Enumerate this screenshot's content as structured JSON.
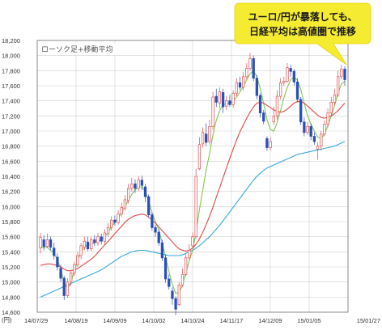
{
  "chart_data": {
    "type": "candlestick",
    "title": "ローソク足+移動平均",
    "ylabel": "(円)",
    "ylim": [
      14600,
      18200
    ],
    "y_ticks": [
      "18,200",
      "18,000",
      "17,800",
      "17,600",
      "17,400",
      "17,200",
      "17,000",
      "16,800",
      "16,600",
      "16,400",
      "16,200",
      "16,000",
      "15,800",
      "15,600",
      "15,400",
      "15,200",
      "15,000",
      "14,800",
      "14,600"
    ],
    "x_ticks": [
      "14/07/29",
      "14/08/19",
      "14/09/09",
      "14/10/02",
      "14/10/24",
      "14/11/17",
      "14/12/09",
      "15/01/05",
      "15/01/27"
    ],
    "grid": true,
    "colors": {
      "up": "#e05050",
      "down": "#2a4fb8",
      "ma_short": "#7fc850",
      "ma_mid": "#e04848",
      "ma_long": "#37a7dd",
      "bubble": "#f5ec31",
      "frame": "#888888",
      "grid": "#d0d0d0"
    },
    "candles": [
      {
        "o": 15450,
        "c": 15590,
        "h": 15650,
        "l": 15380
      },
      {
        "o": 15560,
        "c": 15470,
        "h": 15620,
        "l": 15420
      },
      {
        "o": 15470,
        "c": 15560,
        "h": 15640,
        "l": 15450
      },
      {
        "o": 15560,
        "c": 15460,
        "h": 15600,
        "l": 15420
      },
      {
        "o": 15450,
        "c": 15350,
        "h": 15520,
        "l": 15300
      },
      {
        "o": 15330,
        "c": 15200,
        "h": 15380,
        "l": 15150
      },
      {
        "o": 15180,
        "c": 15050,
        "h": 15230,
        "l": 15000
      },
      {
        "o": 15050,
        "c": 14820,
        "h": 15080,
        "l": 14760
      },
      {
        "o": 14820,
        "c": 15000,
        "h": 15050,
        "l": 14790
      },
      {
        "o": 15000,
        "c": 15120,
        "h": 15150,
        "l": 14950
      },
      {
        "o": 15120,
        "c": 15230,
        "h": 15270,
        "l": 15080
      },
      {
        "o": 15230,
        "c": 15350,
        "h": 15400,
        "l": 15200
      },
      {
        "o": 15350,
        "c": 15480,
        "h": 15520,
        "l": 15300
      },
      {
        "o": 15460,
        "c": 15540,
        "h": 15600,
        "l": 15420
      },
      {
        "o": 15530,
        "c": 15440,
        "h": 15600,
        "l": 15410
      },
      {
        "o": 15440,
        "c": 15560,
        "h": 15600,
        "l": 15410
      },
      {
        "o": 15560,
        "c": 15520,
        "h": 15620,
        "l": 15480
      },
      {
        "o": 15520,
        "c": 15600,
        "h": 15650,
        "l": 15480
      },
      {
        "o": 15600,
        "c": 15540,
        "h": 15640,
        "l": 15500
      },
      {
        "o": 15540,
        "c": 15650,
        "h": 15700,
        "l": 15500
      },
      {
        "o": 15640,
        "c": 15720,
        "h": 15780,
        "l": 15600
      },
      {
        "o": 15720,
        "c": 15820,
        "h": 15870,
        "l": 15680
      },
      {
        "o": 15820,
        "c": 15790,
        "h": 15880,
        "l": 15750
      },
      {
        "o": 15790,
        "c": 15900,
        "h": 15950,
        "l": 15760
      },
      {
        "o": 15900,
        "c": 15990,
        "h": 16050,
        "l": 15860
      },
      {
        "o": 15980,
        "c": 16090,
        "h": 16150,
        "l": 15940
      },
      {
        "o": 16080,
        "c": 16240,
        "h": 16300,
        "l": 16040
      },
      {
        "o": 16240,
        "c": 16300,
        "h": 16380,
        "l": 16200
      },
      {
        "o": 16300,
        "c": 16240,
        "h": 16360,
        "l": 16180
      },
      {
        "o": 16240,
        "c": 16350,
        "h": 16400,
        "l": 16200
      },
      {
        "o": 16350,
        "c": 16280,
        "h": 16410,
        "l": 16220
      },
      {
        "o": 16260,
        "c": 16130,
        "h": 16300,
        "l": 16060
      },
      {
        "o": 16130,
        "c": 15890,
        "h": 16160,
        "l": 15860
      },
      {
        "o": 15890,
        "c": 15720,
        "h": 15920,
        "l": 15680
      },
      {
        "o": 15720,
        "c": 15660,
        "h": 15760,
        "l": 15600
      },
      {
        "o": 15660,
        "c": 15520,
        "h": 15700,
        "l": 15480
      },
      {
        "o": 15520,
        "c": 15320,
        "h": 15560,
        "l": 15280
      },
      {
        "o": 15320,
        "c": 15040,
        "h": 15360,
        "l": 14990
      },
      {
        "o": 15040,
        "c": 14940,
        "h": 15100,
        "l": 14900
      },
      {
        "o": 14880,
        "c": 14780,
        "h": 14930,
        "l": 14700
      },
      {
        "o": 14780,
        "c": 14640,
        "h": 14810,
        "l": 14560
      },
      {
        "o": 14700,
        "c": 14960,
        "h": 15000,
        "l": 14680
      },
      {
        "o": 14960,
        "c": 15100,
        "h": 15180,
        "l": 14930
      },
      {
        "o": 15100,
        "c": 15320,
        "h": 15380,
        "l": 15080
      },
      {
        "o": 15320,
        "c": 15420,
        "h": 15500,
        "l": 15300
      },
      {
        "o": 15480,
        "c": 15600,
        "h": 15660,
        "l": 15450
      },
      {
        "o": 15600,
        "c": 16400,
        "h": 16500,
        "l": 15580
      },
      {
        "o": 16500,
        "c": 16820,
        "h": 16920,
        "l": 16480
      },
      {
        "o": 16830,
        "c": 16980,
        "h": 17050,
        "l": 16780
      },
      {
        "o": 16960,
        "c": 16850,
        "h": 17100,
        "l": 16800
      },
      {
        "o": 16860,
        "c": 17060,
        "h": 17150,
        "l": 16820
      },
      {
        "o": 17060,
        "c": 17450,
        "h": 17520,
        "l": 17020
      },
      {
        "o": 17460,
        "c": 17380,
        "h": 17560,
        "l": 17320
      },
      {
        "o": 17370,
        "c": 17520,
        "h": 17580,
        "l": 17300
      },
      {
        "o": 17510,
        "c": 17320,
        "h": 17560,
        "l": 17240
      },
      {
        "o": 17330,
        "c": 17400,
        "h": 17460,
        "l": 17280
      },
      {
        "o": 17400,
        "c": 17350,
        "h": 17480,
        "l": 17320
      },
      {
        "o": 17350,
        "c": 17500,
        "h": 17540,
        "l": 17310
      },
      {
        "o": 17500,
        "c": 17640,
        "h": 17700,
        "l": 17460
      },
      {
        "o": 17640,
        "c": 17580,
        "h": 17720,
        "l": 17540
      },
      {
        "o": 17580,
        "c": 17720,
        "h": 17780,
        "l": 17540
      },
      {
        "o": 17720,
        "c": 17830,
        "h": 17900,
        "l": 17680
      },
      {
        "o": 17830,
        "c": 17960,
        "h": 18030,
        "l": 17800
      },
      {
        "o": 17960,
        "c": 17700,
        "h": 18000,
        "l": 17660
      },
      {
        "o": 17700,
        "c": 17470,
        "h": 17740,
        "l": 17420
      },
      {
        "o": 17470,
        "c": 17240,
        "h": 17500,
        "l": 17180
      },
      {
        "o": 17240,
        "c": 17130,
        "h": 17280,
        "l": 17090
      },
      {
        "o": 16900,
        "c": 16780,
        "h": 16930,
        "l": 16740
      },
      {
        "o": 16780,
        "c": 16860,
        "h": 16920,
        "l": 16740
      },
      {
        "o": 17120,
        "c": 17200,
        "h": 17320,
        "l": 17080
      },
      {
        "o": 17200,
        "c": 17460,
        "h": 17540,
        "l": 17150
      },
      {
        "o": 17460,
        "c": 17640,
        "h": 17700,
        "l": 17420
      },
      {
        "o": 17640,
        "c": 17660,
        "h": 17720,
        "l": 17600
      },
      {
        "o": 17660,
        "c": 17840,
        "h": 17900,
        "l": 17640
      },
      {
        "o": 17830,
        "c": 17790,
        "h": 17880,
        "l": 17720
      },
      {
        "o": 17790,
        "c": 17650,
        "h": 17820,
        "l": 17600
      },
      {
        "o": 17650,
        "c": 17420,
        "h": 17700,
        "l": 17380
      },
      {
        "o": 17420,
        "c": 17120,
        "h": 17450,
        "l": 17080
      },
      {
        "o": 17120,
        "c": 16980,
        "h": 17180,
        "l": 16930
      },
      {
        "o": 16980,
        "c": 17060,
        "h": 17120,
        "l": 16950
      },
      {
        "o": 17060,
        "c": 16930,
        "h": 17100,
        "l": 16880
      },
      {
        "o": 16930,
        "c": 16860,
        "h": 16980,
        "l": 16820
      },
      {
        "o": 16760,
        "c": 16800,
        "h": 16850,
        "l": 16620
      },
      {
        "o": 16800,
        "c": 16960,
        "h": 17000,
        "l": 16740
      },
      {
        "o": 16960,
        "c": 17090,
        "h": 17140,
        "l": 16930
      },
      {
        "o": 17090,
        "c": 17240,
        "h": 17300,
        "l": 17050
      },
      {
        "o": 17240,
        "c": 17380,
        "h": 17450,
        "l": 17200
      },
      {
        "o": 17380,
        "c": 17480,
        "h": 17560,
        "l": 17340
      },
      {
        "o": 17480,
        "c": 17720,
        "h": 17800,
        "l": 17450
      },
      {
        "o": 17720,
        "c": 17820,
        "h": 17880,
        "l": 17680
      },
      {
        "o": 17820,
        "c": 17680,
        "h": 17860,
        "l": 17600
      }
    ],
    "series": [
      {
        "values": [
          15450,
          15460,
          15460,
          15420,
          15380,
          15300,
          15170,
          15000,
          14910,
          14990,
          15150,
          15280,
          15400,
          15470,
          15490,
          15500,
          15520,
          15540,
          15560,
          15600,
          15660,
          15730,
          15790,
          15850,
          15920,
          16000,
          16080,
          16160,
          16220,
          16260,
          16260,
          16200,
          16070,
          15920,
          15800,
          15690,
          15520,
          15330,
          15140,
          14970,
          14850,
          14860,
          14960,
          15120,
          15280,
          15420,
          15660,
          15960,
          16220,
          16480,
          16700,
          16950,
          17140,
          17270,
          17350,
          17360,
          17370,
          17400,
          17450,
          17520,
          17590,
          17680,
          17760,
          17800,
          17720,
          17560,
          17370,
          17150,
          17020,
          17000,
          17110,
          17270,
          17440,
          17580,
          17680,
          17720,
          17670,
          17550,
          17370,
          17200,
          17090,
          17000,
          16920,
          16900,
          16960,
          17070,
          17200,
          17340,
          17500,
          17620,
          17660
        ]
      },
      {
        "values": [
          15220,
          15230,
          15240,
          15240,
          15230,
          15220,
          15200,
          15170,
          15150,
          15150,
          15160,
          15180,
          15210,
          15240,
          15270,
          15300,
          15340,
          15390,
          15440,
          15490,
          15540,
          15590,
          15640,
          15690,
          15740,
          15790,
          15830,
          15860,
          15880,
          15890,
          15900,
          15890,
          15860,
          15820,
          15780,
          15730,
          15680,
          15630,
          15580,
          15530,
          15480,
          15440,
          15420,
          15410,
          15420,
          15450,
          15500,
          15570,
          15660,
          15760,
          15870,
          15990,
          16120,
          16250,
          16380,
          16510,
          16640,
          16760,
          16880,
          16990,
          17080,
          17170,
          17250,
          17320,
          17370,
          17380,
          17370,
          17340,
          17310,
          17280,
          17260,
          17250,
          17260,
          17290,
          17330,
          17370,
          17390,
          17390,
          17370,
          17330,
          17290,
          17250,
          17210,
          17180,
          17170,
          17180,
          17200,
          17230,
          17270,
          17320,
          17370
        ]
      },
      {
        "values": [
          14800,
          14820,
          14840,
          14860,
          14880,
          14900,
          14920,
          14940,
          14960,
          14980,
          15000,
          15020,
          15040,
          15060,
          15080,
          15100,
          15120,
          15140,
          15160,
          15190,
          15220,
          15250,
          15280,
          15310,
          15340,
          15360,
          15380,
          15400,
          15410,
          15420,
          15420,
          15420,
          15410,
          15400,
          15390,
          15380,
          15370,
          15360,
          15350,
          15350,
          15350,
          15350,
          15360,
          15380,
          15400,
          15420,
          15450,
          15480,
          15520,
          15560,
          15600,
          15650,
          15700,
          15750,
          15810,
          15870,
          15930,
          15990,
          16050,
          16110,
          16170,
          16230,
          16290,
          16350,
          16400,
          16440,
          16480,
          16510,
          16530,
          16550,
          16570,
          16590,
          16610,
          16630,
          16650,
          16670,
          16690,
          16700,
          16710,
          16720,
          16730,
          16740,
          16750,
          16760,
          16770,
          16780,
          16790,
          16800,
          16820,
          16840,
          16860
        ]
      }
    ],
    "annotation": [
      "ユーロ/円が暴落しても、",
      "日経平均は高値圏で推移"
    ]
  }
}
